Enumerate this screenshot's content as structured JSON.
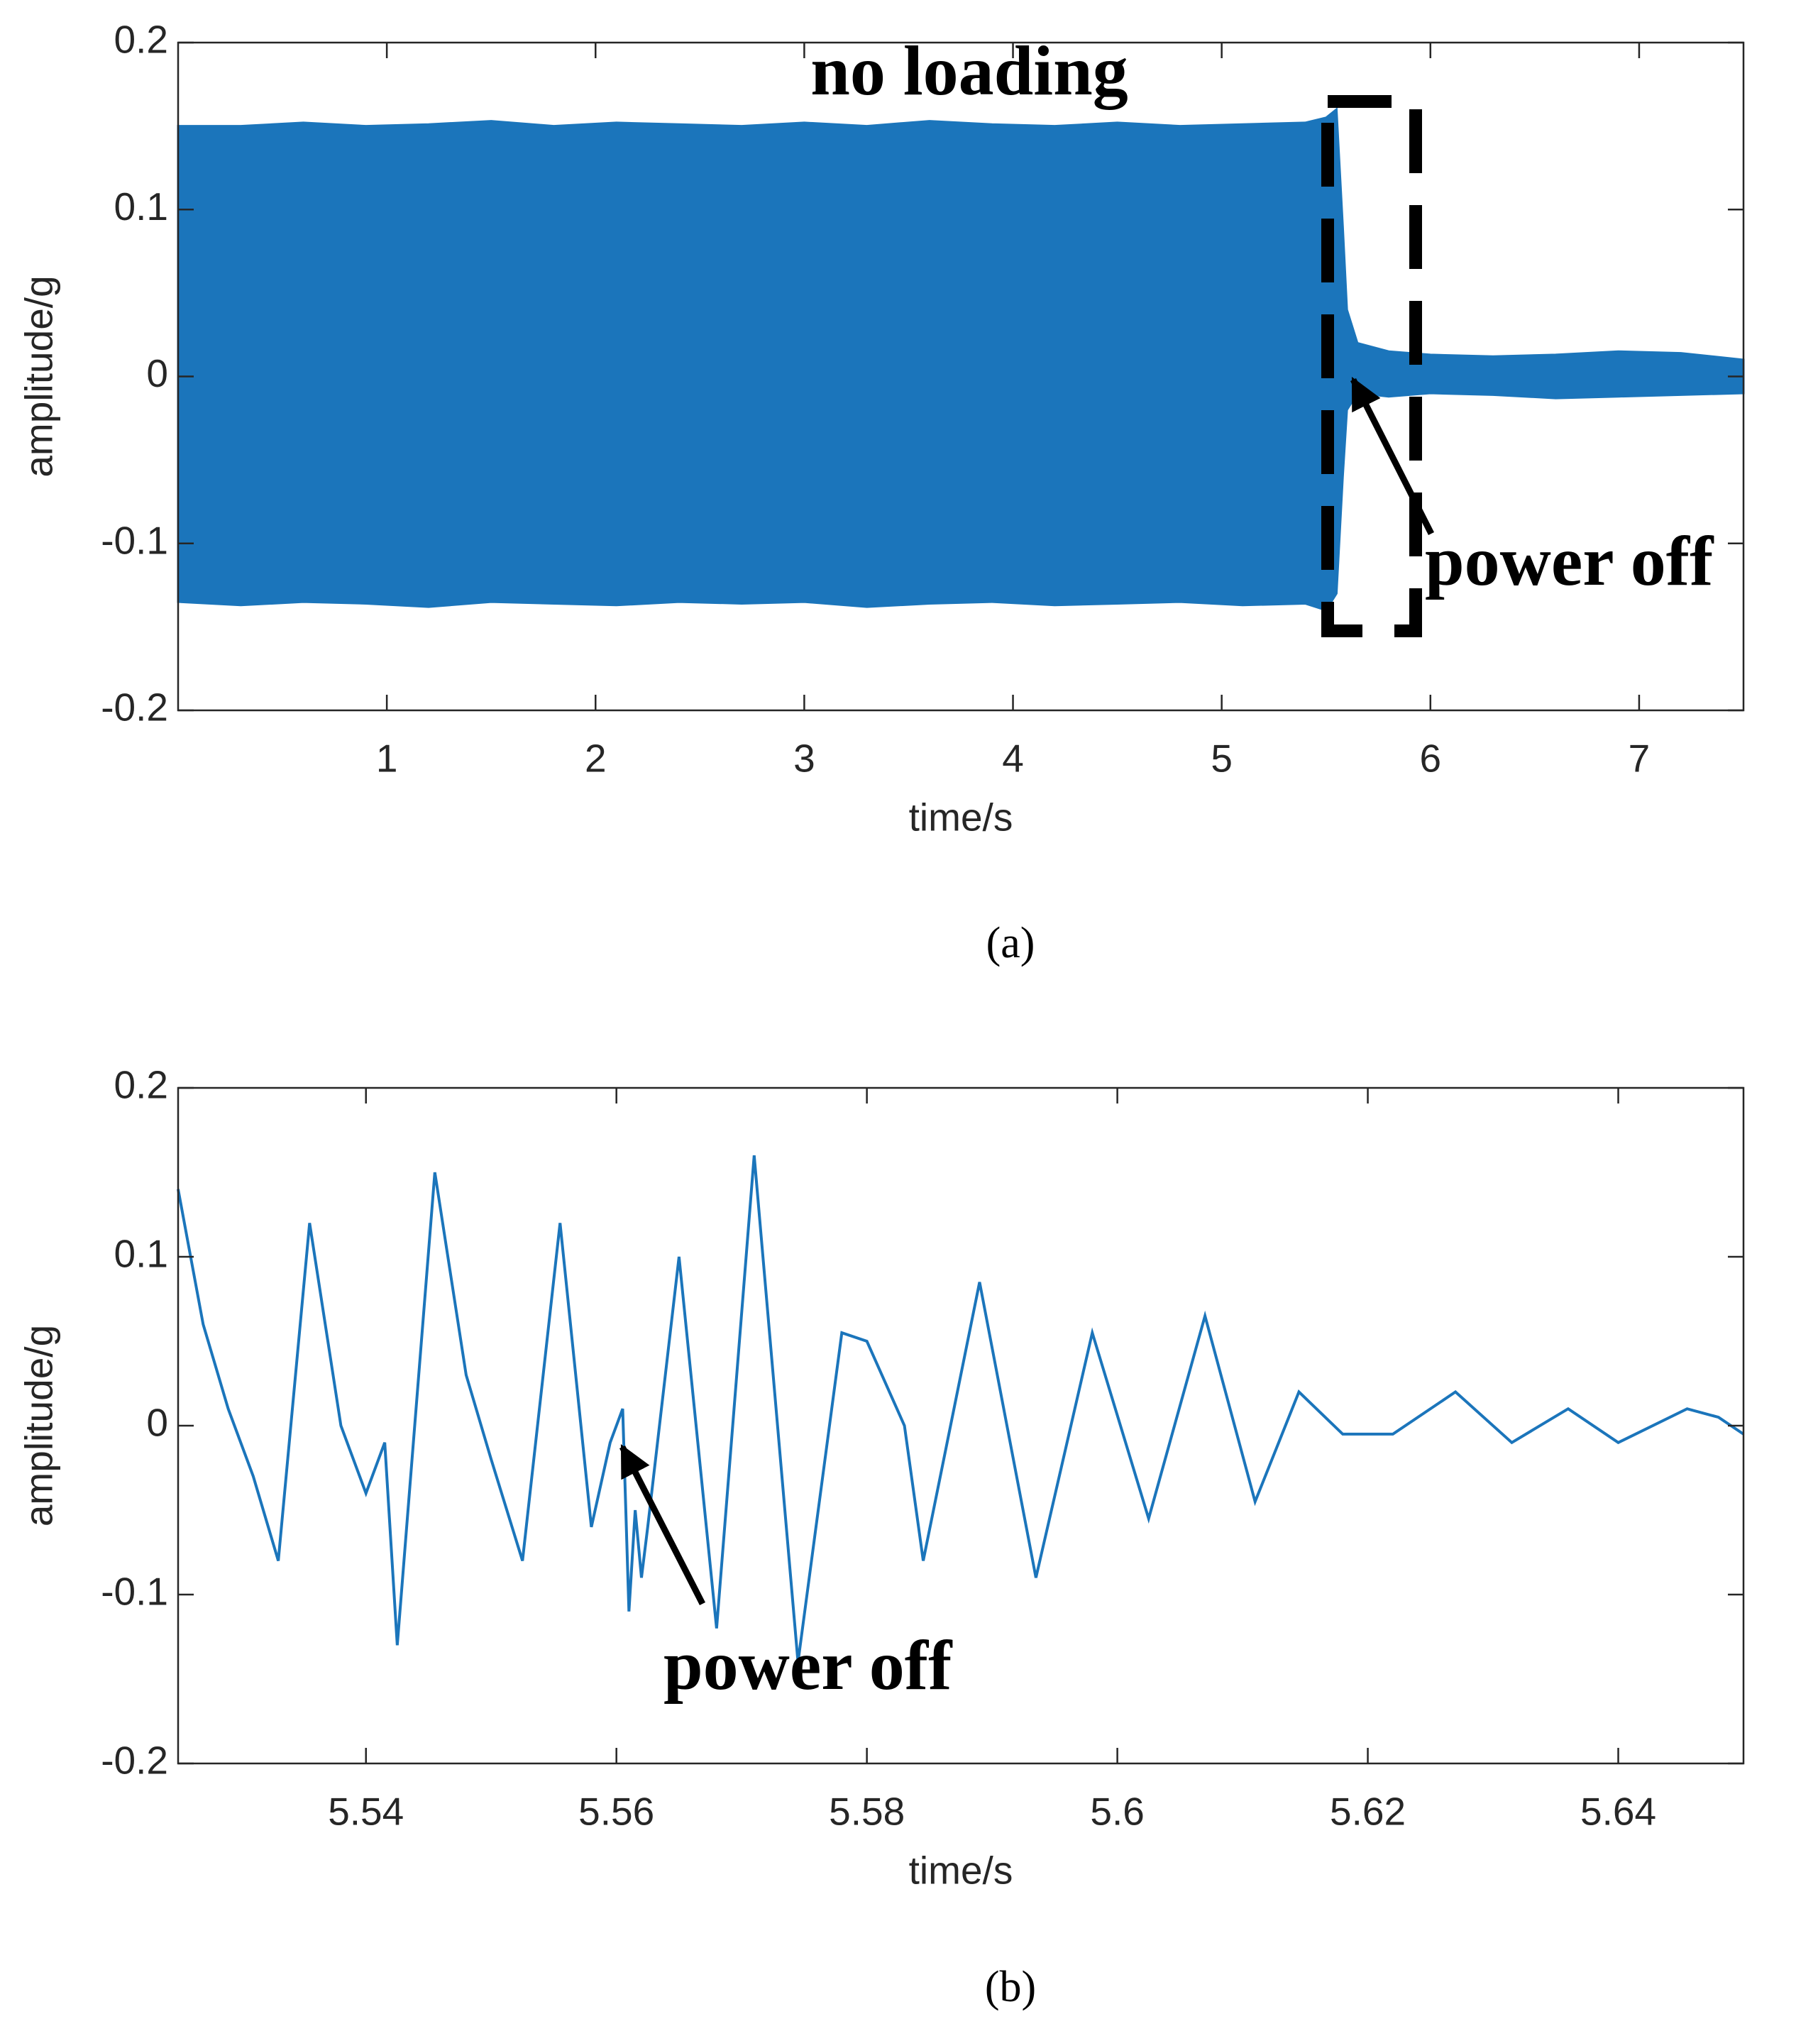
{
  "chart_data": [
    {
      "type": "band",
      "xlabel": "time/s",
      "ylabel": "amplitude/g",
      "caption": "(a)",
      "color": "#1b75bb",
      "annotations": [
        "no loading",
        "power off"
      ],
      "x": [
        0.0,
        0.3,
        0.6,
        0.9,
        1.2,
        1.5,
        1.8,
        2.1,
        2.4,
        2.7,
        3.0,
        3.3,
        3.6,
        3.9,
        4.2,
        4.5,
        4.8,
        5.1,
        5.4,
        5.5,
        5.55,
        5.58,
        5.6,
        5.65,
        5.8,
        6.0,
        6.3,
        6.6,
        6.9,
        7.2,
        7.5
      ],
      "upper": [
        0.15,
        0.15,
        0.152,
        0.15,
        0.151,
        0.153,
        0.15,
        0.152,
        0.151,
        0.15,
        0.152,
        0.15,
        0.153,
        0.151,
        0.15,
        0.152,
        0.15,
        0.151,
        0.152,
        0.155,
        0.16,
        0.09,
        0.04,
        0.02,
        0.015,
        0.013,
        0.012,
        0.013,
        0.015,
        0.014,
        0.01
      ],
      "lower": [
        -0.135,
        -0.137,
        -0.135,
        -0.136,
        -0.138,
        -0.135,
        -0.136,
        -0.137,
        -0.135,
        -0.136,
        -0.135,
        -0.138,
        -0.136,
        -0.135,
        -0.137,
        -0.136,
        -0.135,
        -0.137,
        -0.136,
        -0.14,
        -0.13,
        -0.06,
        -0.02,
        -0.01,
        -0.012,
        -0.01,
        -0.011,
        -0.013,
        -0.012,
        -0.011,
        -0.01
      ],
      "xlim": [
        0,
        7.5
      ],
      "xticks": [
        1,
        2,
        3,
        4,
        5,
        6,
        7
      ],
      "ylim": [
        -0.2,
        0.2
      ],
      "yticks": [
        -0.2,
        -0.1,
        0,
        0.1,
        0.2
      ]
    },
    {
      "type": "line",
      "xlabel": "time/s",
      "ylabel": "amplitude/g",
      "caption": "(b)",
      "color": "#1b75bb",
      "annotations": [
        "power off"
      ],
      "x": [
        5.525,
        5.527,
        5.529,
        5.531,
        5.533,
        5.5355,
        5.538,
        5.54,
        5.5415,
        5.5425,
        5.5455,
        5.548,
        5.55,
        5.5525,
        5.5555,
        5.558,
        5.5595,
        5.5605,
        5.561,
        5.5615,
        5.562,
        5.5625,
        5.565,
        5.568,
        5.571,
        5.5745,
        5.578,
        5.58,
        5.583,
        5.5845,
        5.589,
        5.5935,
        5.598,
        5.6025,
        5.607,
        5.611,
        5.6145,
        5.618,
        5.622,
        5.627,
        5.6315,
        5.636,
        5.64,
        5.6455,
        5.648,
        5.65
      ],
      "values": [
        0.14,
        0.06,
        0.01,
        -0.03,
        -0.08,
        0.12,
        0.0,
        -0.04,
        -0.01,
        -0.13,
        0.15,
        0.03,
        -0.02,
        -0.08,
        0.12,
        -0.06,
        -0.01,
        0.01,
        -0.11,
        -0.05,
        -0.09,
        -0.06,
        0.1,
        -0.12,
        0.16,
        -0.14,
        0.055,
        0.05,
        0.0,
        -0.08,
        0.085,
        -0.09,
        0.055,
        -0.055,
        0.065,
        -0.045,
        0.02,
        -0.005,
        -0.005,
        0.02,
        -0.01,
        0.01,
        -0.01,
        0.01,
        0.005,
        -0.005
      ],
      "xlim": [
        5.525,
        5.65
      ],
      "xticks": [
        5.54,
        5.56,
        5.58,
        5.6,
        5.62,
        5.64
      ],
      "ylim": [
        -0.2,
        0.2
      ],
      "yticks": [
        -0.2,
        -0.1,
        0,
        0.1,
        0.2
      ]
    }
  ]
}
